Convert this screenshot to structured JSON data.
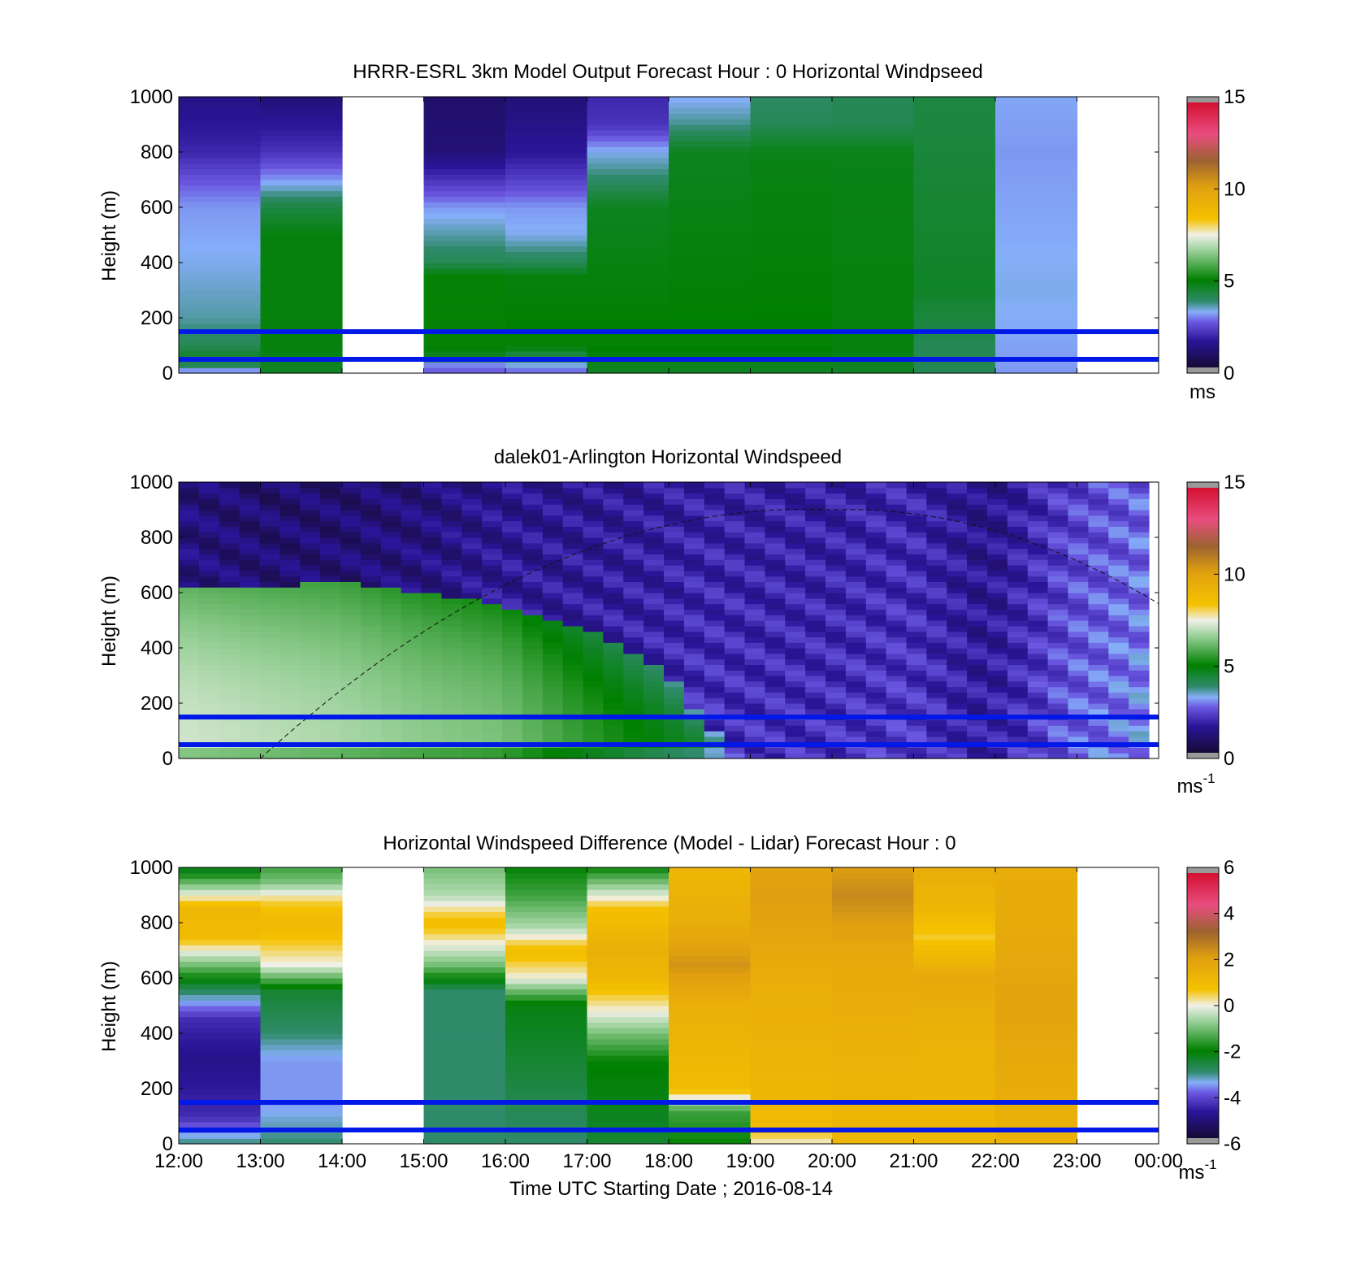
{
  "figure": {
    "xlabel": "Time UTC  Starting Date ; 2016-08-14",
    "time_ticks": [
      "12:00",
      "13:00",
      "14:00",
      "15:00",
      "16:00",
      "17:00",
      "18:00",
      "19:00",
      "20:00",
      "21:00",
      "22:00",
      "23:00",
      "00:00"
    ]
  },
  "chart_data": [
    {
      "type": "heatmap",
      "title": "HRRR-ESRL 3km Model Output   Forecast Hour : 0 Horizontal Windpseed",
      "ylabel": "Height (m)",
      "ylim": [
        0,
        1000
      ],
      "yticks": [
        "0",
        "200",
        "400",
        "600",
        "800",
        "1000"
      ],
      "xlim": [
        "12:00",
        "00:00"
      ],
      "colorbar": {
        "label": "ms",
        "label_sup": "",
        "range": [
          0,
          15
        ],
        "ticks": [
          "0",
          "5",
          "10",
          "15"
        ]
      },
      "reference_heights_m": [
        50,
        150
      ],
      "columns": [
        {
          "hour": "12:00",
          "profile": [
            [
              0,
              2.5
            ],
            [
              30,
              4
            ],
            [
              60,
              4.5
            ],
            [
              100,
              4
            ],
            [
              200,
              3.5
            ],
            [
              400,
              3.2
            ],
            [
              600,
              3
            ],
            [
              700,
              2.5
            ],
            [
              800,
              1.8
            ],
            [
              1000,
              1.2
            ]
          ]
        },
        {
          "hour": "13:00",
          "profile": [
            [
              0,
              4.5
            ],
            [
              100,
              4.8
            ],
            [
              500,
              4.8
            ],
            [
              600,
              4.2
            ],
            [
              700,
              3
            ],
            [
              800,
              2
            ],
            [
              1000,
              1
            ]
          ]
        },
        {
          "hour": "14:00",
          "profile": null
        },
        {
          "hour": "15:00",
          "profile": [
            [
              0,
              2.5
            ],
            [
              40,
              3
            ],
            [
              60,
              4.5
            ],
            [
              100,
              5
            ],
            [
              350,
              5
            ],
            [
              400,
              4
            ],
            [
              500,
              3.5
            ],
            [
              600,
              3
            ],
            [
              700,
              2
            ],
            [
              800,
              1
            ],
            [
              1000,
              0.8
            ]
          ]
        },
        {
          "hour": "16:00",
          "profile": [
            [
              0,
              2.5
            ],
            [
              60,
              4
            ],
            [
              100,
              5
            ],
            [
              350,
              4.8
            ],
            [
              400,
              4
            ],
            [
              500,
              3.2
            ],
            [
              600,
              3
            ],
            [
              700,
              2.2
            ],
            [
              800,
              1.5
            ],
            [
              1000,
              1
            ]
          ]
        },
        {
          "hour": "17:00",
          "profile": [
            [
              0,
              4.5
            ],
            [
              100,
              5
            ],
            [
              600,
              4.6
            ],
            [
              700,
              3.8
            ],
            [
              800,
              3.2
            ],
            [
              900,
              2
            ],
            [
              1000,
              1.8
            ]
          ]
        },
        {
          "hour": "18:00",
          "profile": [
            [
              0,
              4.5
            ],
            [
              100,
              5
            ],
            [
              800,
              4.6
            ],
            [
              900,
              3.6
            ],
            [
              1000,
              3.1
            ]
          ]
        },
        {
          "hour": "19:00",
          "profile": [
            [
              0,
              4.5
            ],
            [
              100,
              5
            ],
            [
              800,
              4.7
            ],
            [
              900,
              4
            ],
            [
              1000,
              3.8
            ]
          ]
        },
        {
          "hour": "20:00",
          "profile": [
            [
              0,
              4.5
            ],
            [
              100,
              4.8
            ],
            [
              800,
              4.7
            ],
            [
              900,
              4
            ],
            [
              1000,
              4
            ]
          ]
        },
        {
          "hour": "21:00",
          "profile": [
            [
              0,
              4
            ],
            [
              100,
              4
            ],
            [
              300,
              4.5
            ],
            [
              1000,
              4.2
            ]
          ]
        },
        {
          "hour": "22:00",
          "profile": [
            [
              0,
              3
            ],
            [
              300,
              3.2
            ],
            [
              800,
              3
            ],
            [
              1000,
              3.1
            ]
          ]
        },
        {
          "hour": "23:00",
          "profile": null
        }
      ]
    },
    {
      "type": "heatmap",
      "title": "dalek01-Arlington  Horizontal Windspeed",
      "ylabel": "Height (m)",
      "ylim": [
        0,
        1000
      ],
      "yticks": [
        "0",
        "200",
        "400",
        "600",
        "800",
        "1000"
      ],
      "xlim": [
        "12:00",
        "00:00"
      ],
      "colorbar": {
        "label": "ms",
        "label_sup": "-1",
        "range": [
          0,
          15
        ],
        "ticks": [
          "0",
          "5",
          "10",
          "15"
        ]
      },
      "reference_heights_m": [
        50,
        150
      ],
      "overlay_curve": {
        "style": "dashed",
        "start": [
          "13:00",
          0
        ],
        "peak": [
          "20:00",
          900
        ],
        "end": [
          "00:00",
          560
        ]
      },
      "time_anchors": [
        {
          "t": "12:00",
          "top": 620,
          "low": 7.2,
          "above": 1.2
        },
        {
          "t": "13:00",
          "top": 620,
          "low": 7.0,
          "above": 1.0
        },
        {
          "t": "14:00",
          "top": 640,
          "low": 6.8,
          "above": 1.0
        },
        {
          "t": "15:00",
          "top": 600,
          "low": 6.5,
          "above": 1.2
        },
        {
          "t": "16:00",
          "top": 560,
          "low": 6.3,
          "above": 1.5
        },
        {
          "t": "17:00",
          "top": 480,
          "low": 5.5,
          "above": 1.6
        },
        {
          "t": "18:00",
          "top": 330,
          "low": 4.8,
          "above": 1.8
        },
        {
          "t": "18:30",
          "top": 130,
          "low": 4.5,
          "above": 2.0
        },
        {
          "t": "19:00",
          "top": 20,
          "low": 3.2,
          "above": 2.0
        },
        {
          "t": "20:00",
          "top": 0,
          "low": 2.8,
          "above": 2.0
        },
        {
          "t": "21:00",
          "top": 0,
          "low": 2.2,
          "above": 2.2
        },
        {
          "t": "22:00",
          "top": 0,
          "low": 1.8,
          "above": 1.6
        },
        {
          "t": "23:00",
          "top": 0,
          "low": 2.5,
          "above": 2.6
        },
        {
          "t": "23:59",
          "top": 0,
          "low": 3.0,
          "above": 3.0
        }
      ]
    },
    {
      "type": "heatmap",
      "title": "Horizontal Windspeed Difference (Model - Lidar) Forecast Hour : 0",
      "ylabel": "Height (m)",
      "ylim": [
        0,
        1000
      ],
      "yticks": [
        "0",
        "200",
        "400",
        "600",
        "800",
        "1000"
      ],
      "xlim": [
        "12:00",
        "00:00"
      ],
      "colorbar": {
        "label": "ms",
        "label_sup": "-1",
        "range": [
          -6,
          6
        ],
        "ticks": [
          "-6",
          "-4",
          "-2",
          "0",
          "2",
          "4",
          "6"
        ]
      },
      "reference_heights_m": [
        50,
        150
      ],
      "columns": [
        {
          "hour": "12:00",
          "profile": [
            [
              0,
              -3
            ],
            [
              100,
              -4.5
            ],
            [
              300,
              -5
            ],
            [
              450,
              -4.5
            ],
            [
              550,
              -3
            ],
            [
              650,
              -1
            ],
            [
              750,
              1
            ],
            [
              850,
              1.2
            ],
            [
              920,
              -0.5
            ],
            [
              1000,
              -2.5
            ]
          ]
        },
        {
          "hour": "13:00",
          "profile": [
            [
              0,
              -3
            ],
            [
              150,
              -3.6
            ],
            [
              300,
              -3.6
            ],
            [
              400,
              -3
            ],
            [
              550,
              -2.5
            ],
            [
              650,
              0
            ],
            [
              800,
              1.2
            ],
            [
              880,
              0.5
            ],
            [
              950,
              -1
            ],
            [
              1000,
              -1.5
            ]
          ]
        },
        {
          "hour": "14:00",
          "profile": null
        },
        {
          "hour": "15:00",
          "profile": [
            [
              0,
              -3
            ],
            [
              300,
              -3
            ],
            [
              550,
              -3
            ],
            [
              650,
              -1
            ],
            [
              800,
              1
            ],
            [
              900,
              -0.5
            ],
            [
              1000,
              -1
            ]
          ]
        },
        {
          "hour": "16:00",
          "profile": [
            [
              0,
              -3
            ],
            [
              300,
              -2.5
            ],
            [
              500,
              -2.2
            ],
            [
              560,
              -1
            ],
            [
              600,
              0
            ],
            [
              700,
              1
            ],
            [
              780,
              -0.5
            ],
            [
              900,
              -1.5
            ],
            [
              1000,
              -2
            ]
          ]
        },
        {
          "hour": "17:00",
          "profile": [
            [
              0,
              -2.5
            ],
            [
              300,
              -2
            ],
            [
              400,
              -1
            ],
            [
              480,
              0
            ],
            [
              600,
              1.2
            ],
            [
              700,
              1.5
            ],
            [
              850,
              0.8
            ],
            [
              920,
              -0.5
            ],
            [
              1000,
              -2
            ]
          ]
        },
        {
          "hour": "18:00",
          "profile": [
            [
              0,
              -2
            ],
            [
              120,
              -1.5
            ],
            [
              200,
              1
            ],
            [
              500,
              1.5
            ],
            [
              650,
              2.4
            ],
            [
              800,
              1.6
            ],
            [
              1000,
              1.2
            ]
          ]
        },
        {
          "hour": "19:00",
          "profile": [
            [
              0,
              0
            ],
            [
              60,
              1
            ],
            [
              150,
              1.2
            ],
            [
              600,
              1.6
            ],
            [
              900,
              2.2
            ],
            [
              1000,
              2
            ]
          ]
        },
        {
          "hour": "20:00",
          "profile": [
            [
              0,
              1.2
            ],
            [
              300,
              1.4
            ],
            [
              700,
              1.8
            ],
            [
              900,
              2.6
            ],
            [
              1000,
              2.2
            ]
          ]
        },
        {
          "hour": "21:00",
          "profile": [
            [
              0,
              1.2
            ],
            [
              400,
              1.4
            ],
            [
              600,
              1.8
            ],
            [
              750,
              0.6
            ],
            [
              850,
              1.2
            ],
            [
              1000,
              1.6
            ]
          ]
        },
        {
          "hour": "22:00",
          "profile": [
            [
              0,
              1.4
            ],
            [
              500,
              2
            ],
            [
              700,
              1.8
            ],
            [
              1000,
              1.6
            ]
          ]
        },
        {
          "hour": "23:00",
          "profile": null
        }
      ]
    }
  ]
}
